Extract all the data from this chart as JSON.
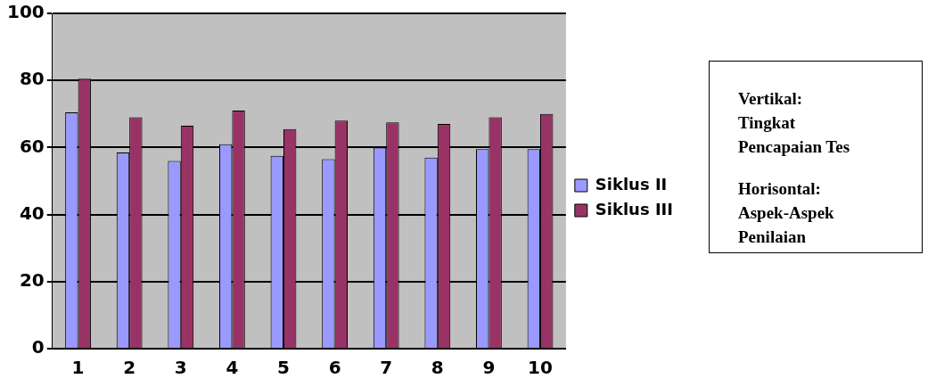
{
  "chart_data": {
    "type": "bar",
    "categories": [
      "1",
      "2",
      "3",
      "4",
      "5",
      "6",
      "7",
      "8",
      "9",
      "10"
    ],
    "series": [
      {
        "name": "Siklus II",
        "color": "#9999ff",
        "values": [
          70.5,
          58.5,
          56,
          61,
          57.5,
          56.5,
          60,
          57,
          59.5,
          59.5
        ]
      },
      {
        "name": "Siklus III",
        "color": "#993366",
        "values": [
          80.5,
          69,
          66.5,
          71,
          65.5,
          68,
          67.5,
          67,
          69,
          70
        ]
      }
    ],
    "ylim": [
      0,
      100
    ],
    "yticks": [
      0,
      20,
      40,
      60,
      80,
      100
    ],
    "grid": "y",
    "legend": "right",
    "annotations": [
      "Vertikal:\nTingkat\nPencapaian Tes",
      "Horisontal:\nAspek-Aspek\nPenilaian"
    ]
  }
}
